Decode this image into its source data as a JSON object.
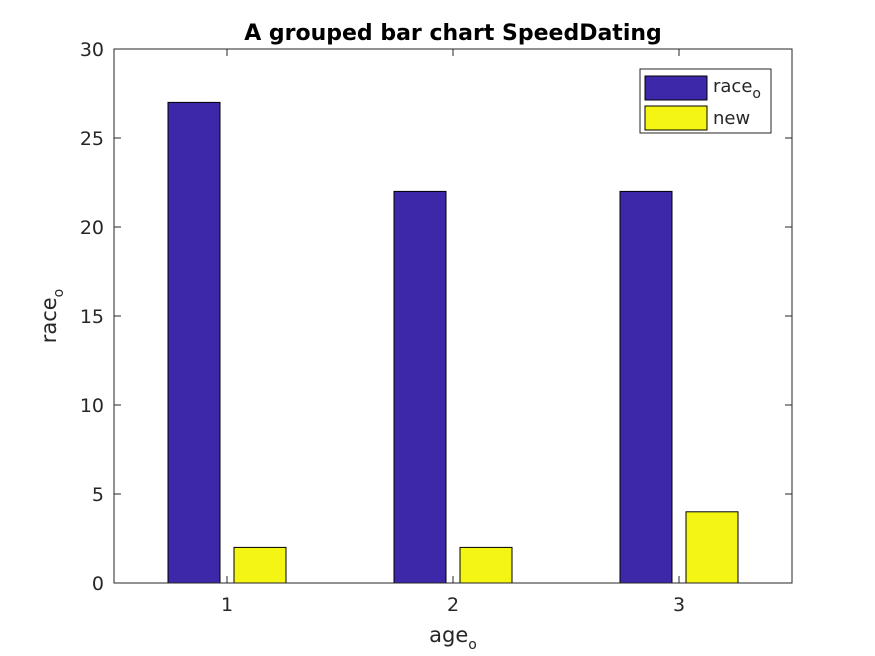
{
  "chart_data": {
    "type": "bar",
    "title": "A grouped bar chart SpeedDating",
    "xlabel": {
      "base": "age",
      "subscript": "o"
    },
    "ylabel": {
      "base": "race",
      "subscript": "o"
    },
    "categories": [
      "1",
      "2",
      "3"
    ],
    "ylim": [
      0,
      30
    ],
    "yticks": [
      0,
      5,
      10,
      15,
      20,
      25,
      30
    ],
    "grid": false,
    "legend_position": "top-right",
    "series": [
      {
        "name": "race_o",
        "legend_base": "race",
        "legend_subscript": "o",
        "color": "#3c28a8",
        "values": [
          27,
          22,
          22
        ]
      },
      {
        "name": "new",
        "legend_base": "new",
        "legend_subscript": "",
        "color": "#f5f514",
        "values": [
          2,
          2,
          4
        ]
      }
    ]
  }
}
